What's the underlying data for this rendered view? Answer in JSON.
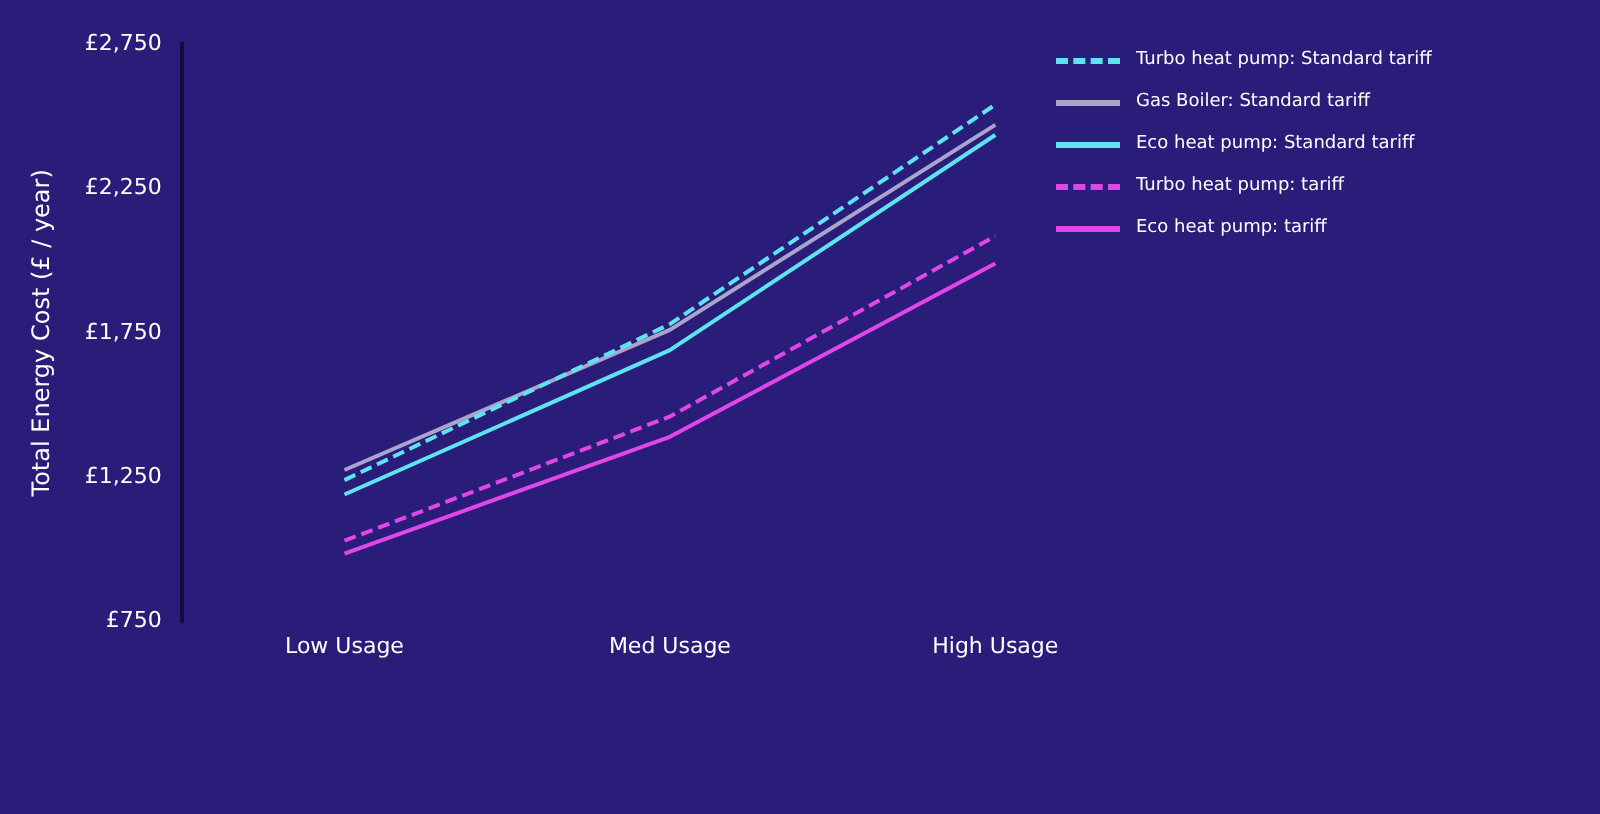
{
  "chart_data": {
    "type": "line",
    "ylabel": "Total Energy Cost (£ / year)",
    "categories": [
      "Low Usage",
      "Med Usage",
      "High Usage"
    ],
    "series": [
      {
        "name": "Turbo heat pump: Standard tariff",
        "color": "#5ee3f2",
        "line_style": "dashed",
        "values": [
          1240,
          1780,
          2540
        ]
      },
      {
        "name": "Gas Boiler: Standard tariff",
        "color": "#aaa3cc",
        "values": [
          1275,
          1760,
          2470
        ]
      },
      {
        "name": "Eco heat pump: Standard tariff",
        "color": "#5ee3f2",
        "values": [
          1190,
          1690,
          2435
        ]
      },
      {
        "name": "Turbo heat pump: tariff",
        "color": "#e046e8",
        "line_style": "dashed",
        "values": [
          1030,
          1460,
          2085
        ]
      },
      {
        "name": "Eco heat pump: tariff",
        "color": "#e046e8",
        "values": [
          985,
          1390,
          1990
        ]
      }
    ],
    "ylim": [
      750,
      2750
    ],
    "yticks": [
      {
        "value": 750,
        "label": "£750"
      },
      {
        "value": 1250,
        "label": "£1,250"
      },
      {
        "value": 1750,
        "label": "£1,750"
      },
      {
        "value": 2250,
        "label": "£2,250"
      },
      {
        "value": 2750,
        "label": "£2,750"
      }
    ],
    "grid": false,
    "legend": "right",
    "marker": "none",
    "line_style": "solid"
  }
}
